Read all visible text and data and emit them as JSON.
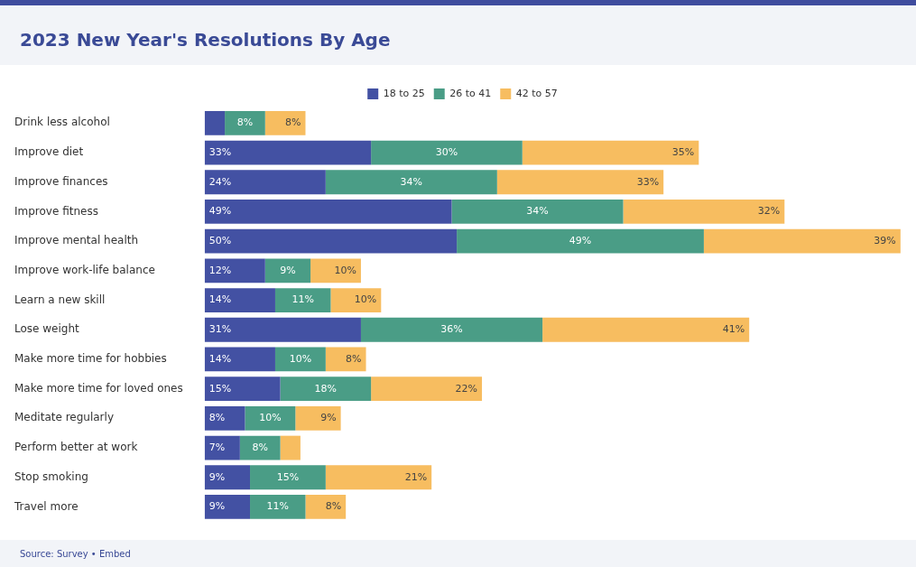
{
  "chart_data": {
    "type": "bar",
    "orientation": "horizontal",
    "stacked": true,
    "title": "2023 New Year's Resolutions By Age",
    "categories": [
      "Drink less alcohol",
      "Improve diet",
      "Improve finances",
      "Improve fitness",
      "Improve mental health",
      "Improve work-life balance",
      "Learn a new skill",
      "Lose weight",
      "Make more time for hobbies",
      "Make more time for loved ones",
      "Meditate regularly",
      "Perform better at work",
      "Stop smoking",
      "Travel more"
    ],
    "series": [
      {
        "name": "18 to 25",
        "color": "#4351a3",
        "values": [
          4,
          33,
          24,
          49,
          50,
          12,
          14,
          31,
          14,
          15,
          8,
          7,
          9,
          9
        ],
        "value_labels": [
          null,
          "33%",
          "24%",
          "49%",
          "50%",
          "12%",
          "14%",
          "31%",
          "14%",
          "15%",
          "8%",
          "7%",
          "9%",
          "9%"
        ]
      },
      {
        "name": "26 to 41",
        "color": "#4a9d86",
        "values": [
          8,
          30,
          34,
          34,
          49,
          9,
          11,
          36,
          10,
          18,
          10,
          8,
          15,
          11
        ],
        "value_labels": [
          "8%",
          "30%",
          "34%",
          "34%",
          "49%",
          "9%",
          "11%",
          "36%",
          "10%",
          "18%",
          "10%",
          "8%",
          "15%",
          "11%"
        ]
      },
      {
        "name": "42 to 57",
        "color": "#f7bd60",
        "values": [
          8,
          35,
          33,
          32,
          39,
          10,
          10,
          41,
          8,
          22,
          9,
          4,
          21,
          8
        ],
        "value_labels": [
          "8%",
          "35%",
          "33%",
          "32%",
          "39%",
          "10%",
          "10%",
          "41%",
          "8%",
          "22%",
          "9%",
          null,
          "21%",
          "8%"
        ]
      }
    ],
    "legend": "top",
    "annotations": [
      "Source: Survey • Embed"
    ]
  }
}
